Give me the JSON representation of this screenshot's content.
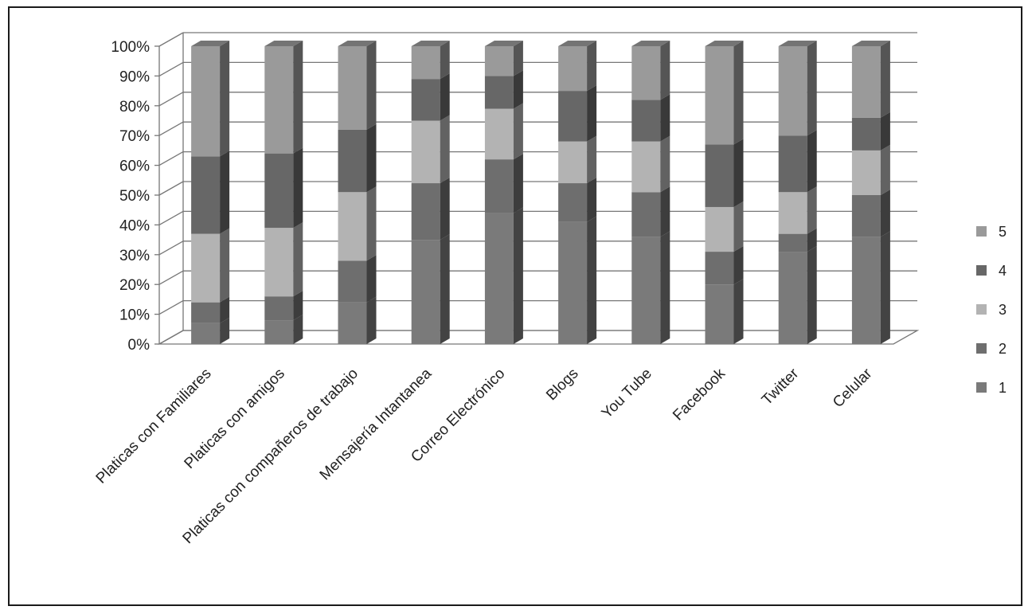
{
  "chart_data": {
    "type": "bar",
    "stacked": true,
    "percent_stacked": true,
    "three_d": true,
    "title": "",
    "xlabel": "",
    "ylabel": "",
    "ylim": [
      0,
      100
    ],
    "y_ticks": [
      "0%",
      "10%",
      "20%",
      "30%",
      "40%",
      "50%",
      "60%",
      "70%",
      "80%",
      "90%",
      "100%"
    ],
    "grid": true,
    "legend_position": "right",
    "categories": [
      "Platicas con Familiares",
      "Platicas con amigos",
      "Platicas con compañeros de trabajo",
      "Mensajería Intantanea",
      "Correo Electrónico",
      "Blogs",
      "You Tube",
      "Facebook",
      "Twitter",
      "Celular"
    ],
    "series": [
      {
        "name": "1",
        "color": "#7a7a7a",
        "values": [
          7,
          8,
          14,
          35,
          44,
          41,
          36,
          20,
          31,
          36
        ]
      },
      {
        "name": "2",
        "color": "#6e6e6e",
        "values": [
          7,
          8,
          14,
          19,
          18,
          13,
          15,
          11,
          6,
          14
        ]
      },
      {
        "name": "3",
        "color": "#b3b3b3",
        "values": [
          23,
          23,
          23,
          21,
          17,
          14,
          17,
          15,
          14,
          15
        ]
      },
      {
        "name": "4",
        "color": "#676767",
        "values": [
          26,
          25,
          21,
          14,
          11,
          17,
          14,
          21,
          19,
          11
        ]
      },
      {
        "name": "5",
        "color": "#9a9a9a",
        "values": [
          37,
          36,
          28,
          11,
          10,
          15,
          18,
          33,
          30,
          24
        ]
      }
    ]
  }
}
